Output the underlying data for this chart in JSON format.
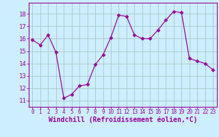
{
  "x": [
    0,
    1,
    2,
    3,
    4,
    5,
    6,
    7,
    8,
    9,
    10,
    11,
    12,
    13,
    14,
    15,
    16,
    17,
    18,
    19,
    20,
    21,
    22,
    23
  ],
  "y": [
    15.9,
    15.5,
    16.3,
    14.9,
    11.2,
    11.5,
    12.2,
    12.3,
    13.9,
    14.7,
    16.1,
    17.9,
    17.8,
    16.3,
    16.0,
    16.0,
    16.7,
    17.5,
    18.2,
    18.1,
    14.4,
    14.2,
    14.0,
    13.5
  ],
  "line_color": "#990099",
  "marker": "D",
  "marker_size": 2.5,
  "bg_color": "#cceeff",
  "grid_color": "#aacccc",
  "xlabel": "Windchill (Refroidissement éolien,°C)",
  "xlim": [
    -0.5,
    23.5
  ],
  "ylim": [
    10.5,
    18.9
  ],
  "yticks": [
    11,
    12,
    13,
    14,
    15,
    16,
    17,
    18
  ],
  "xticks": [
    0,
    1,
    2,
    3,
    4,
    5,
    6,
    7,
    8,
    9,
    10,
    11,
    12,
    13,
    14,
    15,
    16,
    17,
    18,
    19,
    20,
    21,
    22,
    23
  ],
  "tick_color": "#990099",
  "label_color": "#990099",
  "spine_color": "#990099",
  "xlabel_fontsize": 7.0,
  "ytick_fontsize": 6.5,
  "xtick_fontsize": 5.5
}
